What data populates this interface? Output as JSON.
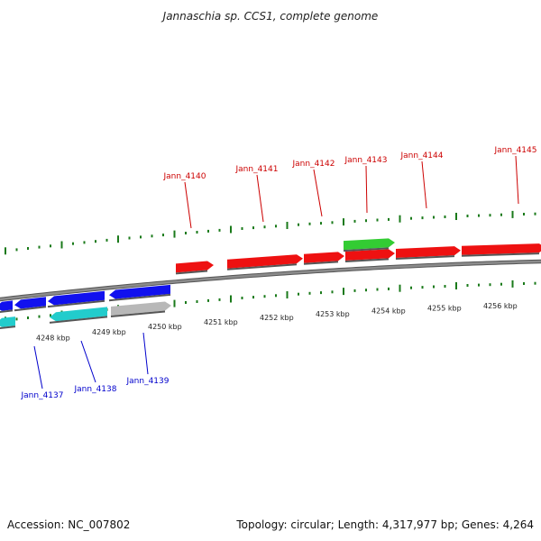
{
  "title": "Jannaschia sp. CCS1, complete genome",
  "footer": {
    "accession": "Accession: NC_007802",
    "summary": "Topology: circular; Length: 4,317,977 bp; Genes: 4,264"
  },
  "colors": {
    "backbone": "#8c8c8c",
    "tick": "#1a7a1a",
    "forward_label": "#cc0000",
    "reverse_label": "#0000cc",
    "red": "#ee1111",
    "green": "#33cc33",
    "blue": "#1111ee",
    "cyan": "#22cccc",
    "grey": "#b8b8b8"
  },
  "kbp_ticks": [
    "4248 kbp",
    "4249 kbp",
    "4250 kbp",
    "4251 kbp",
    "4252 kbp",
    "4253 kbp",
    "4254 kbp",
    "4255 kbp",
    "4256 kbp"
  ],
  "forward_genes": [
    {
      "label": "Jann_4140",
      "color": "red"
    },
    {
      "label": "Jann_4141",
      "color": "red"
    },
    {
      "label": "Jann_4142",
      "color": "red"
    },
    {
      "label": "Jann_4143",
      "color": "red"
    },
    {
      "label": "Jann_4144",
      "color": "red"
    },
    {
      "label": "Jann_4145",
      "color": "red"
    }
  ],
  "extra_forward_gene": {
    "color": "green"
  },
  "reverse_genes": [
    {
      "label": "Jann_4137",
      "color": "cyan"
    },
    {
      "label": "Jann_4138",
      "color": "cyan"
    },
    {
      "label": "Jann_4139",
      "color": "grey"
    }
  ],
  "extra_reverse_genes": [
    {
      "color": "blue"
    },
    {
      "color": "blue"
    },
    {
      "color": "blue"
    },
    {
      "color": "blue"
    }
  ]
}
